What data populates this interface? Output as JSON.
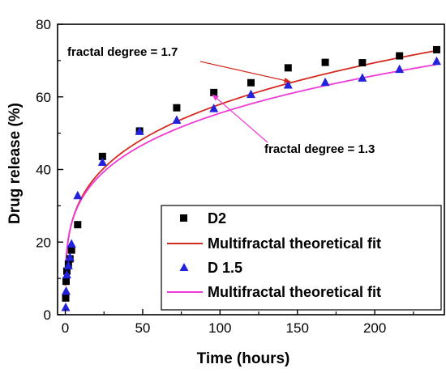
{
  "chart_data": {
    "type": "scatter",
    "xlabel": "Time (hours)",
    "ylabel": "Drug release (%)",
    "xlim": [
      -5,
      245
    ],
    "ylim": [
      0,
      80
    ],
    "xticks": [
      0,
      50,
      100,
      150,
      200
    ],
    "yticks": [
      0,
      20,
      40,
      60,
      80
    ],
    "grid": false,
    "legend_position": "bottom-right",
    "series": [
      {
        "name": "D2",
        "kind": "points",
        "marker": "square",
        "color": "#000000",
        "x": [
          0.25,
          0.5,
          1,
          2,
          3,
          4,
          8,
          24,
          48,
          72,
          96,
          120,
          144,
          168,
          192,
          216,
          240
        ],
        "y": [
          4.6,
          9.2,
          12,
          14,
          15.4,
          17.8,
          24.8,
          43.6,
          50.6,
          57,
          61.2,
          63.9,
          68,
          69.5,
          69.4,
          71.3,
          73
        ]
      },
      {
        "name": "Multifractal theoretical fit",
        "kind": "line",
        "color": "#d42a20",
        "fit": {
          "a": 17.5,
          "b": 0.26
        }
      },
      {
        "name": "D 1.5",
        "kind": "points",
        "marker": "triangle",
        "color": "#2222dd",
        "x": [
          0.25,
          0.5,
          1,
          2,
          3,
          4,
          8,
          24,
          48,
          72,
          96,
          120,
          144,
          168,
          192,
          216,
          240
        ],
        "y": [
          2,
          6.5,
          11,
          13.5,
          15.8,
          19.5,
          32.8,
          42,
          50.5,
          53.6,
          56.8,
          60.7,
          63.3,
          64,
          65.2,
          67.6,
          69.8
        ]
      },
      {
        "name": "Multifractal theoretical fit",
        "kind": "line",
        "color": "#ee3ad6",
        "fit": {
          "a": 17.8,
          "b": 0.247
        }
      }
    ],
    "annotations": [
      {
        "text": "fractal degree = 1.7",
        "color": "#d42a20",
        "points_to_x": 120
      },
      {
        "text": "fractal degree = 1.3",
        "color": "#ee3ad6",
        "points_to_x": 96
      }
    ]
  }
}
